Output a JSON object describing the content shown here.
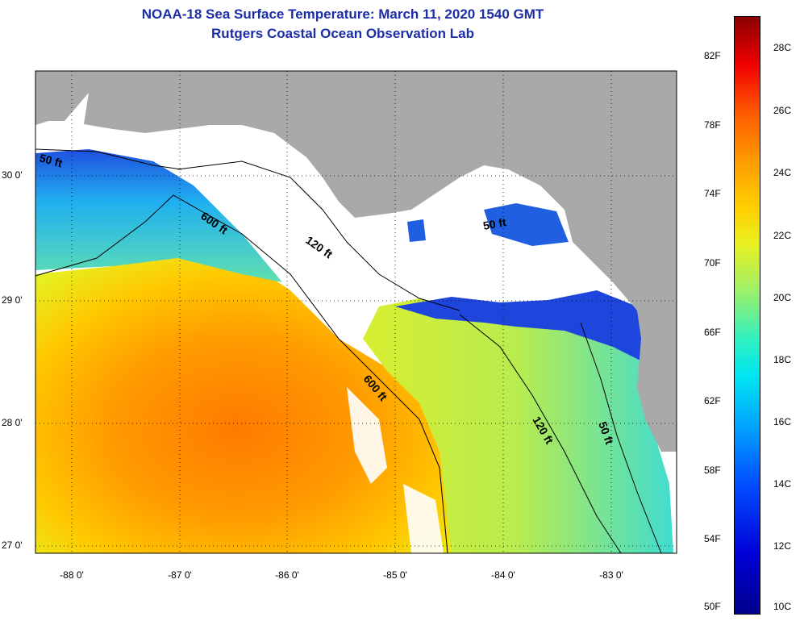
{
  "titles": {
    "line1": "NOAA-18 Sea Surface Temperature:  March 11, 2020 1540 GMT",
    "line2": "Rutgers Coastal Ocean Observation Lab"
  },
  "colors": {
    "title": "#1c2ea6",
    "land": "#a9a9a9",
    "cloud": "#ffffff",
    "warm": "#ff8c00",
    "cool": "#00b4ff",
    "cold": "#1e46dc"
  },
  "map": {
    "lon_ticks": [
      "-88 0'",
      "-87 0'",
      "-86 0'",
      "-85 0'",
      "-84 0'",
      "-83 0'"
    ],
    "lat_ticks": [
      "30 0'",
      "29 0'",
      "28 0'",
      "27 0'"
    ],
    "contours": [
      "50 ft",
      "600 ft",
      "120 ft",
      "50 ft",
      "600 ft",
      "120 ft",
      "50 ft"
    ]
  },
  "colorbar": {
    "fahrenheit": [
      "82F",
      "78F",
      "74F",
      "70F",
      "66F",
      "62F",
      "58F",
      "54F",
      "50F"
    ],
    "celsius": [
      "28C",
      "26C",
      "24C",
      "22C",
      "20C",
      "18C",
      "16C",
      "14C",
      "12C",
      "10C"
    ]
  }
}
